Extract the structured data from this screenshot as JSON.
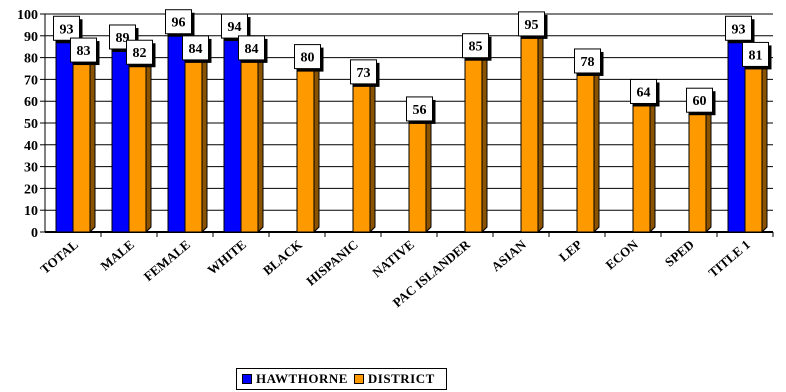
{
  "chart_data": {
    "type": "bar",
    "categories": [
      "TOTAL",
      "MALE",
      "FEMALE",
      "WHITE",
      "BLACK",
      "HISPANIC",
      "NATIVE",
      "PAC ISLANDER",
      "ASIAN",
      "LEP",
      "ECON",
      "SPED",
      "TITLE 1"
    ],
    "series": [
      {
        "name": "HAWTHORNE",
        "color": "#0000ff",
        "values": [
          93,
          89,
          96,
          94,
          null,
          null,
          null,
          null,
          null,
          null,
          null,
          null,
          93
        ]
      },
      {
        "name": "DISTRICT",
        "color": "#ff9900",
        "values": [
          83,
          82,
          84,
          84,
          80,
          73,
          56,
          85,
          95,
          78,
          64,
          60,
          81
        ]
      }
    ],
    "ylim": [
      0,
      100
    ],
    "yticks": [
      0,
      10,
      20,
      30,
      40,
      50,
      60,
      70,
      80,
      90,
      100
    ],
    "grid": true,
    "legend_position": "bottom"
  }
}
